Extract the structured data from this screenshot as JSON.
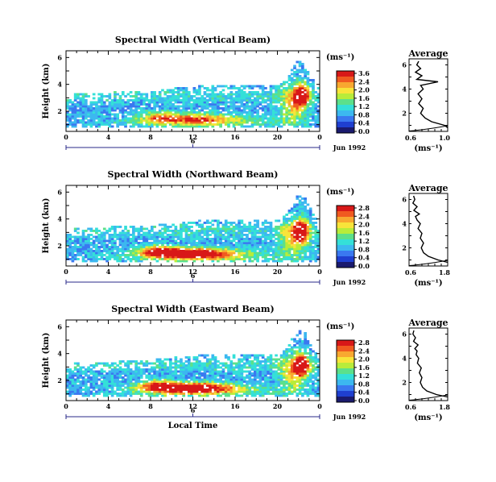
{
  "figure": {
    "date_label": "Jun 1992",
    "time_axis_label": "Local Time",
    "height_axis_label": "Height (km)",
    "unit_label": "(ms⁻¹)",
    "avg_title": "Average",
    "avg_xlabel": "(ms⁻¹)",
    "time_ticks": [
      "0",
      "4",
      "8",
      "12",
      "16",
      "20",
      "0"
    ],
    "day_marker": "6",
    "height_ticks": [
      "2",
      "4",
      "6"
    ],
    "colormap": [
      "#1a1a6e",
      "#1f3fd0",
      "#3a78f0",
      "#3cb8f0",
      "#34e0d8",
      "#5ce08a",
      "#b8ec3a",
      "#f8e43a",
      "#f8a830",
      "#f05a20",
      "#d81818"
    ]
  },
  "chart_data": [
    {
      "type": "heatmap",
      "title": "Spectral Width (Vertical Beam)",
      "xlabel": "",
      "ylabel": "Height (km)",
      "xlim": [
        0,
        24
      ],
      "ylim": [
        0.5,
        6.5
      ],
      "colorbar_ticks": [
        "3.6",
        "2.4",
        "2.0",
        "1.6",
        "1.2",
        "0.8",
        "0.4",
        "0.0"
      ],
      "average": {
        "xlim": [
          0.6,
          1.2
        ],
        "xticks": [
          "0.6",
          "1.0"
        ],
        "profile_height": [
          0.8,
          1.0,
          1.3,
          1.6,
          2.0,
          2.4,
          2.8,
          3.2,
          3.6,
          4.0,
          4.3,
          4.6,
          4.8,
          5.1,
          5.4,
          5.7,
          6.0,
          6.3
        ],
        "profile_value": [
          1.2,
          1.15,
          0.95,
          0.85,
          0.78,
          0.82,
          0.75,
          0.8,
          0.74,
          0.82,
          0.78,
          1.05,
          0.72,
          0.8,
          0.7,
          0.78,
          0.72,
          0.75
        ]
      }
    },
    {
      "type": "heatmap",
      "title": "Spectral Width (Northward Beam)",
      "xlabel": "",
      "ylabel": "Height (km)",
      "xlim": [
        0,
        24
      ],
      "ylim": [
        0.5,
        6.5
      ],
      "colorbar_ticks": [
        "2.8",
        "2.4",
        "2.0",
        "1.6",
        "1.2",
        "0.8",
        "0.4",
        "0.0"
      ],
      "average": {
        "xlim": [
          0.6,
          1.8
        ],
        "xticks": [
          "0.6",
          "1.8"
        ],
        "profile_height": [
          0.8,
          1.0,
          1.3,
          1.6,
          2.0,
          2.4,
          2.8,
          3.2,
          3.6,
          4.0,
          4.3,
          4.6,
          4.8,
          5.1,
          5.4,
          5.7,
          6.0,
          6.3
        ],
        "profile_value": [
          1.8,
          1.5,
          1.2,
          1.05,
          0.98,
          1.05,
          0.95,
          1.0,
          0.88,
          0.95,
          0.85,
          0.8,
          0.92,
          0.75,
          0.85,
          0.72,
          0.78,
          0.74
        ]
      }
    },
    {
      "type": "heatmap",
      "title": "Spectral Width (Eastward Beam)",
      "xlabel": "Local Time",
      "ylabel": "Height (km)",
      "xlim": [
        0,
        24
      ],
      "ylim": [
        0.5,
        6.5
      ],
      "colorbar_ticks": [
        "2.8",
        "2.4",
        "2.0",
        "1.6",
        "1.2",
        "0.8",
        "0.4",
        "0.0"
      ],
      "average": {
        "xlim": [
          0.6,
          1.8
        ],
        "xticks": [
          "0.6",
          "1.8"
        ],
        "profile_height": [
          0.8,
          1.0,
          1.3,
          1.6,
          2.0,
          2.4,
          2.8,
          3.2,
          3.6,
          4.0,
          4.3,
          4.6,
          4.8,
          5.1,
          5.4,
          5.7,
          6.0,
          6.3
        ],
        "profile_value": [
          1.8,
          1.45,
          1.15,
          1.02,
          0.95,
          1.0,
          0.92,
          0.98,
          0.86,
          0.9,
          0.82,
          0.85,
          0.78,
          0.88,
          0.74,
          0.8,
          0.72,
          0.75
        ]
      }
    }
  ]
}
